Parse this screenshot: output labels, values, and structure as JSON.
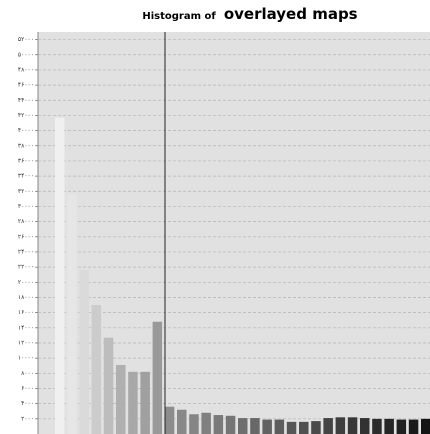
{
  "chart_data": {
    "type": "bar",
    "title_parts": [
      "Histogram of",
      "overlayed maps"
    ],
    "values": [
      41700,
      31500,
      21600,
      17000,
      12700,
      9100,
      8200,
      8200,
      14800,
      3600,
      3200,
      2600,
      2800,
      2500,
      2400,
      2100,
      2100,
      1900,
      1900,
      1600,
      1600,
      1700,
      2100,
      2200,
      2200,
      2100,
      2000,
      2000,
      1900,
      1900,
      2000
    ],
    "colors": [
      "#f0f0f0",
      "#e6e6e6",
      "#dadada",
      "#cccccc",
      "#bdbdbd",
      "#b0b0b0",
      "#a8a8a8",
      "#a0a0a0",
      "#999999",
      "#8c8c8c",
      "#888888",
      "#858585",
      "#808080",
      "#7a7a7a",
      "#757575",
      "#6e6e6e",
      "#686868",
      "#626262",
      "#5c5c5c",
      "#565656",
      "#505050",
      "#4a4a4a",
      "#444444",
      "#3e3e3e",
      "#383838",
      "#323232",
      "#2c2c2c",
      "#262626",
      "#202020",
      "#1a1a1a",
      "#141414"
    ],
    "ylim": [
      0,
      53000
    ],
    "yticks": [
      {
        "value": 2000,
        "label": "۲۰۰۰"
      },
      {
        "value": 4000,
        "label": "۴۰۰۰"
      },
      {
        "value": 6000,
        "label": "۶۰۰۰"
      },
      {
        "value": 8000,
        "label": "۸۰۰۰"
      },
      {
        "value": 10000,
        "label": "۱۰۰۰۰"
      },
      {
        "value": 12000,
        "label": "۱۲۰۰۰"
      },
      {
        "value": 14000,
        "label": "۱۴۰۰۰"
      },
      {
        "value": 16000,
        "label": "۱۶۰۰۰"
      },
      {
        "value": 18000,
        "label": "۱۸۰۰۰"
      },
      {
        "value": 20000,
        "label": "۲۰۰۰۰"
      },
      {
        "value": 22000,
        "label": "۲۲۰۰۰"
      },
      {
        "value": 24000,
        "label": "۲۴۰۰۰"
      },
      {
        "value": 26000,
        "label": "۲۶۰۰۰"
      },
      {
        "value": 28000,
        "label": "۲۸۰۰۰"
      },
      {
        "value": 30000,
        "label": "۳۰۰۰۰"
      },
      {
        "value": 32000,
        "label": "۳۲۰۰۰"
      },
      {
        "value": 34000,
        "label": "۳۴۰۰۰"
      },
      {
        "value": 36000,
        "label": "۳۶۰۰۰"
      },
      {
        "value": 38000,
        "label": "۳۸۰۰۰"
      },
      {
        "value": 40000,
        "label": "۴۰۰۰۰"
      },
      {
        "value": 42000,
        "label": "۴۲۰۰۰"
      },
      {
        "value": 44000,
        "label": "۴۴۰۰۰"
      },
      {
        "value": 46000,
        "label": "۴۶۰۰۰"
      },
      {
        "value": 48000,
        "label": "۴۸۰۰۰"
      },
      {
        "value": 50000,
        "label": "۵۰۰۰۰"
      },
      {
        "value": 52000,
        "label": "۵۲۰۰۰"
      }
    ],
    "grid": true
  }
}
